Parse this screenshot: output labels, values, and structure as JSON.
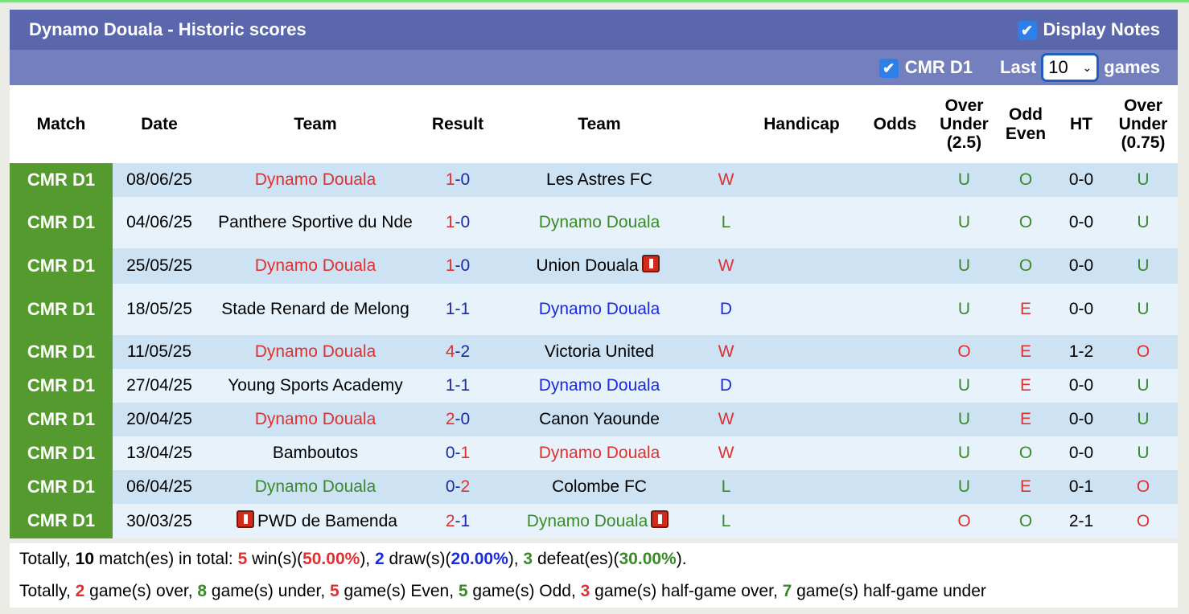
{
  "header": {
    "title": "Dynamo Douala - Historic scores",
    "display_notes_label": "Display Notes",
    "display_notes_checked": true
  },
  "filter": {
    "league_label": "CMR D1",
    "league_checked": true,
    "last_label": "Last",
    "games_value": "10",
    "games_label": "games"
  },
  "columns": [
    "Match",
    "Date",
    "Team",
    "Result",
    "Team",
    "",
    "Handicap",
    "Odds",
    "Over Under (2.5)",
    "Odd Even",
    "HT",
    "Over Under (0.75)"
  ],
  "colors": {
    "red": "#e03030",
    "green": "#3a8a2a",
    "blue": "#1a2ae0",
    "score_blue": "#1a2aa0",
    "match_bg": "#559a2e",
    "header_bg": "#5a67ad"
  },
  "rows": [
    {
      "match": "CMR D1",
      "date": "08/06/25",
      "home": "Dynamo Douala",
      "home_color": "red",
      "home_card": false,
      "hs": "1",
      "as": "0",
      "away": "Les Astres FC",
      "away_color": "",
      "away_card": false,
      "res": "W",
      "res_color": "red",
      "handicap": "",
      "odds": "",
      "ou": "U",
      "oe": "O",
      "ht": "0-0",
      "ou2": "U"
    },
    {
      "match": "CMR D1",
      "date": "04/06/25",
      "home": "Panthere Sportive du Nde",
      "home_color": "",
      "home_card": false,
      "hs": "1",
      "as": "0",
      "away": "Dynamo Douala",
      "away_color": "green",
      "away_card": false,
      "res": "L",
      "res_color": "green",
      "handicap": "",
      "odds": "",
      "ou": "U",
      "oe": "O",
      "ht": "0-0",
      "ou2": "U"
    },
    {
      "match": "CMR D1",
      "date": "25/05/25",
      "home": "Dynamo Douala",
      "home_color": "red",
      "home_card": false,
      "hs": "1",
      "as": "0",
      "away": "Union Douala",
      "away_color": "",
      "away_card": true,
      "res": "W",
      "res_color": "red",
      "handicap": "",
      "odds": "",
      "ou": "U",
      "oe": "O",
      "ht": "0-0",
      "ou2": "U"
    },
    {
      "match": "CMR D1",
      "date": "18/05/25",
      "home": "Stade Renard de Melong",
      "home_color": "",
      "home_card": false,
      "hs": "1",
      "as": "1",
      "away": "Dynamo Douala",
      "away_color": "blue",
      "away_card": false,
      "res": "D",
      "res_color": "blue",
      "handicap": "",
      "odds": "",
      "ou": "U",
      "oe": "E",
      "ht": "0-0",
      "ou2": "U"
    },
    {
      "match": "CMR D1",
      "date": "11/05/25",
      "home": "Dynamo Douala",
      "home_color": "red",
      "home_card": false,
      "hs": "4",
      "as": "2",
      "away": "Victoria United",
      "away_color": "",
      "away_card": false,
      "res": "W",
      "res_color": "red",
      "handicap": "",
      "odds": "",
      "ou": "O",
      "oe": "E",
      "ht": "1-2",
      "ou2": "O"
    },
    {
      "match": "CMR D1",
      "date": "27/04/25",
      "home": "Young Sports Academy",
      "home_color": "",
      "home_card": false,
      "hs": "1",
      "as": "1",
      "away": "Dynamo Douala",
      "away_color": "blue",
      "away_card": false,
      "res": "D",
      "res_color": "blue",
      "handicap": "",
      "odds": "",
      "ou": "U",
      "oe": "E",
      "ht": "0-0",
      "ou2": "U"
    },
    {
      "match": "CMR D1",
      "date": "20/04/25",
      "home": "Dynamo Douala",
      "home_color": "red",
      "home_card": false,
      "hs": "2",
      "as": "0",
      "away": "Canon Yaounde",
      "away_color": "",
      "away_card": false,
      "res": "W",
      "res_color": "red",
      "handicap": "",
      "odds": "",
      "ou": "U",
      "oe": "E",
      "ht": "0-0",
      "ou2": "U"
    },
    {
      "match": "CMR D1",
      "date": "13/04/25",
      "home": "Bamboutos",
      "home_color": "",
      "home_card": false,
      "hs": "0",
      "as": "1",
      "away": "Dynamo Douala",
      "away_color": "red",
      "away_card": false,
      "res": "W",
      "res_color": "red",
      "handicap": "",
      "odds": "",
      "ou": "U",
      "oe": "O",
      "ht": "0-0",
      "ou2": "U"
    },
    {
      "match": "CMR D1",
      "date": "06/04/25",
      "home": "Dynamo Douala",
      "home_color": "green",
      "home_card": false,
      "hs": "0",
      "as": "2",
      "away": "Colombe FC",
      "away_color": "",
      "away_card": false,
      "res": "L",
      "res_color": "green",
      "handicap": "",
      "odds": "",
      "ou": "U",
      "oe": "E",
      "ht": "0-1",
      "ou2": "O"
    },
    {
      "match": "CMR D1",
      "date": "30/03/25",
      "home": "PWD de Bamenda",
      "home_color": "",
      "home_card": true,
      "hs": "2",
      "as": "1",
      "away": "Dynamo Douala",
      "away_color": "green",
      "away_card": true,
      "res": "L",
      "res_color": "green",
      "handicap": "",
      "odds": "",
      "ou": "O",
      "oe": "O",
      "ht": "2-1",
      "ou2": "O"
    }
  ],
  "summary": {
    "line1": [
      [
        "Totally, ",
        ""
      ],
      [
        "10",
        "b"
      ],
      [
        " match(es) in total: ",
        ""
      ],
      [
        "5",
        "red"
      ],
      [
        " win(s)(",
        ""
      ],
      [
        "50.00%",
        "red"
      ],
      [
        "), ",
        ""
      ],
      [
        "2",
        "blue"
      ],
      [
        " draw(s)(",
        ""
      ],
      [
        "20.00%",
        "blue"
      ],
      [
        "), ",
        ""
      ],
      [
        "3",
        "green"
      ],
      [
        " defeat(es)(",
        ""
      ],
      [
        "30.00%",
        "green"
      ],
      [
        ").",
        ""
      ]
    ],
    "line2": [
      [
        "Totally, ",
        ""
      ],
      [
        "2",
        "red"
      ],
      [
        " game(s) over, ",
        ""
      ],
      [
        "8",
        "green"
      ],
      [
        " game(s) under, ",
        ""
      ],
      [
        "5",
        "red"
      ],
      [
        " game(s) Even, ",
        ""
      ],
      [
        "5",
        "green"
      ],
      [
        " game(s) Odd, ",
        ""
      ],
      [
        "3",
        "red"
      ],
      [
        " game(s) half-game over, ",
        ""
      ],
      [
        "7",
        "green"
      ],
      [
        " game(s) half-game under",
        ""
      ]
    ]
  }
}
